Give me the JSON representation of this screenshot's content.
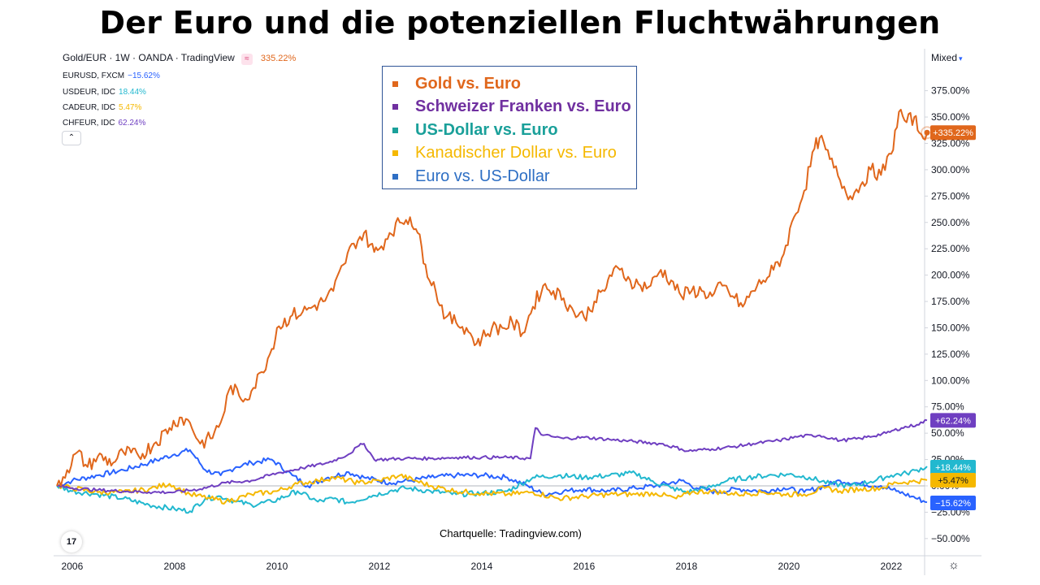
{
  "title": "Der Euro und die potenziellen Fluchtwährungen",
  "header": {
    "symbol_line": "Gold/EUR · 1W · OANDA · TradingView",
    "symbol_icon": "≈",
    "symbol_pct": "335.22%",
    "comparisons": [
      {
        "label": "EURUSD, FXCM",
        "value": "−15.62%",
        "color": "#2962ff"
      },
      {
        "label": "USDEUR, IDC",
        "value": "18.44%",
        "color": "#22b8cf"
      },
      {
        "label": "CADEUR, IDC",
        "value": "5.47%",
        "color": "#f5b800"
      },
      {
        "label": "CHFEUR, IDC",
        "value": "62.24%",
        "color": "#6f3fc1"
      }
    ],
    "collapse_icon": "chevron-up-icon"
  },
  "scale_mode": "Mixed",
  "legend": [
    {
      "label": "Gold vs. Euro",
      "color": "#e0671c",
      "bold": true
    },
    {
      "label": "Schweizer Franken vs. Euro",
      "color": "#7030a0",
      "bold": true
    },
    {
      "label": "US-Dollar vs. Euro",
      "color": "#1aa09a",
      "bold": true
    },
    {
      "label": "Kanadischer Dollar vs. Euro",
      "color": "#f5b800",
      "bold": false
    },
    {
      "label": "Euro vs. US-Dollar",
      "color": "#2e6fc4",
      "bold": false
    }
  ],
  "source_note": "Chartquelle: Tradingview.com)",
  "tv_logo": "17",
  "settings_icon": "☼",
  "chart_data": {
    "type": "line",
    "xlabel": "",
    "ylabel": "",
    "x_ticks": [
      "2006",
      "2008",
      "2010",
      "2012",
      "2014",
      "2016",
      "2018",
      "2020",
      "2022"
    ],
    "xlim": [
      2005.7,
      2023.0
    ],
    "ylim": [
      -60,
      390
    ],
    "y_unit": "%",
    "y_ticks": [
      "375.00%",
      "350.00%",
      "325.00%",
      "300.00%",
      "275.00%",
      "250.00%",
      "225.00%",
      "200.00%",
      "175.00%",
      "150.00%",
      "125.00%",
      "100.00%",
      "75.00%",
      "50.00%",
      "25.00%",
      "0.00%",
      "−25.00%",
      "−50.00%"
    ],
    "y_tick_values": [
      375,
      350,
      325,
      300,
      275,
      250,
      225,
      200,
      175,
      150,
      125,
      100,
      75,
      50,
      25,
      0,
      -25,
      -50
    ],
    "grid": false,
    "zero_line": true,
    "series": [
      {
        "name": "Gold/EUR",
        "color": "#e0671c",
        "last_label": "+335.22%",
        "x": [
          2005.7,
          2005.9,
          2006.1,
          2006.3,
          2006.5,
          2006.8,
          2007.0,
          2007.3,
          2007.6,
          2007.9,
          2008.1,
          2008.3,
          2008.5,
          2008.7,
          2008.9,
          2009.1,
          2009.3,
          2009.5,
          2009.7,
          2009.9,
          2010.0,
          2010.3,
          2010.5,
          2010.7,
          2010.9,
          2011.1,
          2011.3,
          2011.5,
          2011.7,
          2011.9,
          2012.0,
          2012.2,
          2012.4,
          2012.6,
          2012.75,
          2012.9,
          2013.1,
          2013.3,
          2013.5,
          2013.7,
          2013.9,
          2014.0,
          2014.2,
          2014.4,
          2014.6,
          2014.8,
          2015.0,
          2015.2,
          2015.4,
          2015.6,
          2015.8,
          2016.0,
          2016.2,
          2016.4,
          2016.5,
          2016.7,
          2016.9,
          2017.1,
          2017.3,
          2017.5,
          2017.7,
          2017.9,
          2018.1,
          2018.3,
          2018.5,
          2018.7,
          2018.9,
          2019.1,
          2019.3,
          2019.5,
          2019.7,
          2019.9,
          2020.1,
          2020.3,
          2020.5,
          2020.6,
          2020.8,
          2021.0,
          2021.2,
          2021.4,
          2021.6,
          2021.8,
          2022.0,
          2022.15,
          2022.3,
          2022.45,
          2022.55,
          2022.7
        ],
        "y": [
          0,
          15,
          32,
          18,
          28,
          22,
          32,
          28,
          40,
          55,
          65,
          60,
          40,
          45,
          60,
          95,
          82,
          90,
          108,
          130,
          150,
          162,
          165,
          170,
          175,
          185,
          210,
          230,
          240,
          222,
          225,
          240,
          250,
          255,
          240,
          210,
          185,
          160,
          155,
          150,
          135,
          140,
          150,
          150,
          155,
          145,
          170,
          190,
          185,
          178,
          165,
          160,
          175,
          185,
          200,
          205,
          195,
          190,
          190,
          205,
          195,
          180,
          185,
          185,
          180,
          190,
          180,
          170,
          185,
          195,
          205,
          220,
          255,
          280,
          320,
          330,
          310,
          290,
          275,
          285,
          300,
          295,
          315,
          355,
          345,
          350,
          335,
          335.2
        ]
      },
      {
        "name": "CHFEUR",
        "color": "#6f3fc1",
        "last_label": "+62.24%",
        "x": [
          2005.7,
          2006.0,
          2006.5,
          2007.0,
          2007.5,
          2008.0,
          2008.5,
          2009.0,
          2009.5,
          2010.0,
          2010.5,
          2011.0,
          2011.4,
          2011.6,
          2011.7,
          2011.9,
          2012.0,
          2012.5,
          2013.0,
          2013.5,
          2014.0,
          2014.5,
          2014.95,
          2015.05,
          2015.2,
          2015.6,
          2016.0,
          2016.5,
          2017.0,
          2017.5,
          2017.9,
          2018.0,
          2018.5,
          2018.9,
          2019.3,
          2019.8,
          2020.2,
          2020.6,
          2021.0,
          2021.4,
          2021.9,
          2022.2,
          2022.5,
          2022.7
        ],
        "y": [
          0,
          -2,
          -4,
          -5,
          -6,
          -6,
          -3,
          3,
          5,
          12,
          17,
          22,
          30,
          38,
          40,
          25,
          25,
          26,
          26,
          27,
          27,
          27,
          26,
          55,
          48,
          45,
          46,
          44,
          42,
          40,
          35,
          33,
          35,
          37,
          40,
          43,
          47,
          48,
          43,
          45,
          50,
          55,
          58,
          62.2
        ]
      },
      {
        "name": "USDEUR",
        "color": "#22b8cf",
        "last_label": "+18.44%",
        "x": [
          2005.7,
          2006.0,
          2006.5,
          2007.0,
          2007.5,
          2008.0,
          2008.3,
          2008.6,
          2008.9,
          2009.2,
          2009.5,
          2009.9,
          2010.4,
          2010.8,
          2011.1,
          2011.4,
          2011.8,
          2012.2,
          2012.5,
          2013.0,
          2013.5,
          2014.0,
          2014.5,
          2015.0,
          2015.5,
          2016.0,
          2016.5,
          2017.0,
          2017.3,
          2017.7,
          2018.0,
          2018.4,
          2018.8,
          2019.2,
          2019.6,
          2020.0,
          2020.4,
          2020.8,
          2021.2,
          2021.6,
          2022.0,
          2022.3,
          2022.5,
          2022.7
        ],
        "y": [
          0,
          -5,
          -8,
          -12,
          -18,
          -22,
          -24,
          -12,
          -10,
          -15,
          -18,
          -15,
          -5,
          -15,
          -12,
          -16,
          -10,
          -5,
          -2,
          -5,
          -8,
          -7,
          -5,
          8,
          10,
          8,
          10,
          12,
          5,
          -2,
          -6,
          -2,
          5,
          8,
          10,
          11,
          8,
          2,
          0,
          4,
          10,
          12,
          15,
          18.4
        ]
      },
      {
        "name": "CADEUR",
        "color": "#f5b800",
        "last_label": "+5.47%",
        "x": [
          2005.7,
          2006.0,
          2006.5,
          2007.0,
          2007.5,
          2007.9,
          2008.3,
          2008.7,
          2009.0,
          2009.5,
          2010.0,
          2010.4,
          2010.8,
          2011.1,
          2011.6,
          2012.0,
          2012.4,
          2012.7,
          2013.0,
          2013.5,
          2014.0,
          2014.5,
          2015.0,
          2015.5,
          2016.0,
          2016.5,
          2017.0,
          2017.4,
          2017.8,
          2018.1,
          2018.5,
          2019.0,
          2019.5,
          2019.9,
          2020.3,
          2020.7,
          2021.0,
          2021.4,
          2021.8,
          2022.1,
          2022.4,
          2022.7
        ],
        "y": [
          0,
          -2,
          -6,
          -6,
          -3,
          2,
          -8,
          -12,
          -15,
          -8,
          -5,
          2,
          5,
          8,
          3,
          5,
          10,
          5,
          0,
          -5,
          -7,
          -8,
          -6,
          -12,
          -10,
          -8,
          -8,
          -7,
          -12,
          -6,
          -5,
          -8,
          -6,
          -8,
          -8,
          -2,
          -5,
          -3,
          -2,
          3,
          4,
          5.5
        ]
      },
      {
        "name": "EURUSD",
        "color": "#2962ff",
        "last_label": "−15.62%",
        "x": [
          2005.7,
          2006.0,
          2006.5,
          2007.0,
          2007.5,
          2008.0,
          2008.3,
          2008.6,
          2008.9,
          2009.2,
          2009.5,
          2009.9,
          2010.3,
          2010.6,
          2011.0,
          2011.4,
          2011.7,
          2012.2,
          2012.6,
          2013.0,
          2013.5,
          2014.0,
          2014.5,
          2014.9,
          2015.2,
          2015.6,
          2016.0,
          2016.5,
          2017.0,
          2017.4,
          2017.9,
          2018.2,
          2018.6,
          2019.0,
          2019.5,
          2019.9,
          2020.3,
          2020.7,
          2021.0,
          2021.4,
          2021.8,
          2022.1,
          2022.4,
          2022.7
        ],
        "y": [
          0,
          5,
          10,
          15,
          22,
          30,
          34,
          15,
          10,
          18,
          22,
          25,
          10,
          0,
          8,
          13,
          8,
          3,
          5,
          8,
          10,
          10,
          8,
          0,
          -8,
          -5,
          -3,
          -5,
          -2,
          0,
          5,
          -2,
          -6,
          -3,
          -5,
          -2,
          -6,
          0,
          5,
          2,
          0,
          -5,
          -10,
          -15.6
        ]
      }
    ]
  }
}
